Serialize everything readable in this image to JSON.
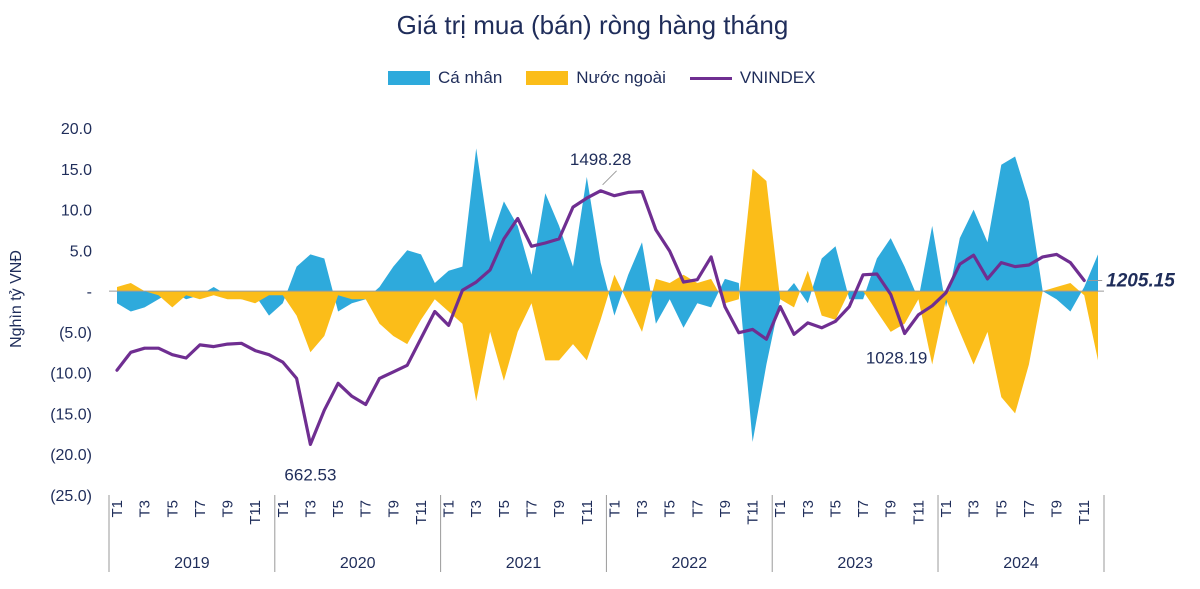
{
  "title": "Giá trị mua (bán) ròng hàng tháng",
  "legend": {
    "ca_nhan": "Cá nhân",
    "nuoc_ngoai": "Nước ngoài",
    "vnindex": "VNINDEX"
  },
  "ylabel": "Nghìn tỷ VNĐ",
  "colors": {
    "ca_nhan": "#2eaadc",
    "nuoc_ngoai": "#fbbd19",
    "vnindex": "#6f2e91",
    "text": "#1f2d5a",
    "axis": "#9a9a9a"
  },
  "chart_data": {
    "type": "area",
    "title": "Giá trị mua (bán) ròng hàng tháng",
    "ylabel": "Nghìn tỷ VNĐ",
    "ylim": [
      -25,
      20
    ],
    "yticks": [
      {
        "v": 20,
        "label": "20.0"
      },
      {
        "v": 15,
        "label": "15.0"
      },
      {
        "v": 10,
        "label": "10.0"
      },
      {
        "v": 5,
        "label": "5.0"
      },
      {
        "v": 0,
        "label": "-"
      },
      {
        "v": -5,
        "label": "(5.0)"
      },
      {
        "v": -10,
        "label": "(10.0)"
      },
      {
        "v": -15,
        "label": "(15.0)"
      },
      {
        "v": -20,
        "label": "(20.0)"
      },
      {
        "v": -25,
        "label": "(25.0)"
      }
    ],
    "month_labels": [
      "T1",
      "T3",
      "T5",
      "T7",
      "T9",
      "T11"
    ],
    "years": [
      "2019",
      "2020",
      "2021",
      "2022",
      "2023",
      "2024"
    ],
    "series": [
      {
        "name": "Cá nhân",
        "kind": "area",
        "values": [
          -1.5,
          -2.5,
          -2.0,
          -1.0,
          0.0,
          -1.0,
          -0.5,
          0.5,
          -0.5,
          -1.0,
          -0.5,
          -3.0,
          -1.5,
          3.0,
          4.5,
          4.0,
          -2.5,
          -1.5,
          -1.0,
          0.5,
          3.0,
          5.0,
          4.5,
          1.0,
          2.5,
          3.0,
          17.5,
          6.0,
          11.0,
          8.0,
          2.0,
          12.0,
          8.0,
          3.0,
          14.0,
          3.5,
          -3.0,
          2.0,
          6.0,
          -4.0,
          -1.0,
          -4.5,
          -1.5,
          -2.0,
          1.5,
          1.0,
          -18.5,
          -9.0,
          -1.0,
          1.0,
          -1.5,
          4.0,
          5.5,
          -1.0,
          -1.0,
          4.0,
          6.5,
          3.0,
          -1.0,
          8.0,
          -2.0,
          6.5,
          10.0,
          6.0,
          15.5,
          16.5,
          11.0,
          0.0,
          -1.0,
          -2.5,
          0.5,
          4.5
        ]
      },
      {
        "name": "Nước ngoài",
        "kind": "area",
        "values": [
          0.5,
          1.0,
          0.0,
          -0.5,
          -2.0,
          -0.5,
          -1.0,
          -0.5,
          -1.0,
          -1.0,
          -1.5,
          -0.5,
          -0.5,
          -3.0,
          -7.5,
          -5.5,
          -0.5,
          -1.0,
          -1.0,
          -4.0,
          -5.5,
          -6.5,
          -3.5,
          -1.0,
          -2.5,
          -4.0,
          -13.5,
          -5.0,
          -11.0,
          -5.0,
          -1.5,
          -8.5,
          -8.5,
          -6.5,
          -8.5,
          -3.5,
          2.0,
          -1.5,
          -5.0,
          1.5,
          1.0,
          2.0,
          1.0,
          1.5,
          -1.5,
          -1.0,
          15.0,
          13.5,
          -1.0,
          -2.0,
          2.5,
          -3.0,
          -3.5,
          0.0,
          0.0,
          -2.5,
          -5.0,
          -4.0,
          -1.0,
          -9.0,
          -1.0,
          -5.0,
          -9.0,
          -5.0,
          -13.0,
          -15.0,
          -9.0,
          0.0,
          0.5,
          1.0,
          -0.5,
          -8.5
        ]
      },
      {
        "name": "VNINDEX",
        "kind": "line",
        "values": [
          -9.7,
          -7.5,
          -7.0,
          -7.0,
          -7.8,
          -8.2,
          -6.6,
          -6.8,
          -6.5,
          -6.4,
          -7.3,
          -7.8,
          -8.7,
          -10.7,
          -18.8,
          -14.6,
          -11.3,
          -12.9,
          -13.9,
          -10.7,
          -9.9,
          -9.1,
          -5.8,
          -2.5,
          -4.2,
          0.1,
          1.1,
          2.6,
          6.4,
          8.9,
          5.5,
          5.9,
          6.4,
          10.3,
          11.4,
          12.3,
          11.7,
          12.1,
          12.2,
          7.5,
          4.9,
          1.1,
          1.4,
          4.2,
          -1.9,
          -5.1,
          -4.7,
          -5.9,
          -1.9,
          -5.3,
          -3.9,
          -4.5,
          -3.7,
          -1.9,
          2.0,
          2.1,
          -0.4,
          -5.2,
          -2.9,
          -1.8,
          -0.2,
          3.3,
          4.4,
          1.5,
          3.5,
          3.0,
          3.2,
          4.2,
          4.5,
          3.5,
          1.3
        ]
      }
    ],
    "annotations": [
      {
        "text": "662.53",
        "series": "VNINDEX",
        "index": 14
      },
      {
        "text": "1498.28",
        "series": "VNINDEX",
        "index": 35
      },
      {
        "text": "1028.19",
        "series": "VNINDEX",
        "index": 57
      },
      {
        "text": "1205.15",
        "series": "VNINDEX",
        "index": 70,
        "style": "bold-italic"
      }
    ]
  }
}
